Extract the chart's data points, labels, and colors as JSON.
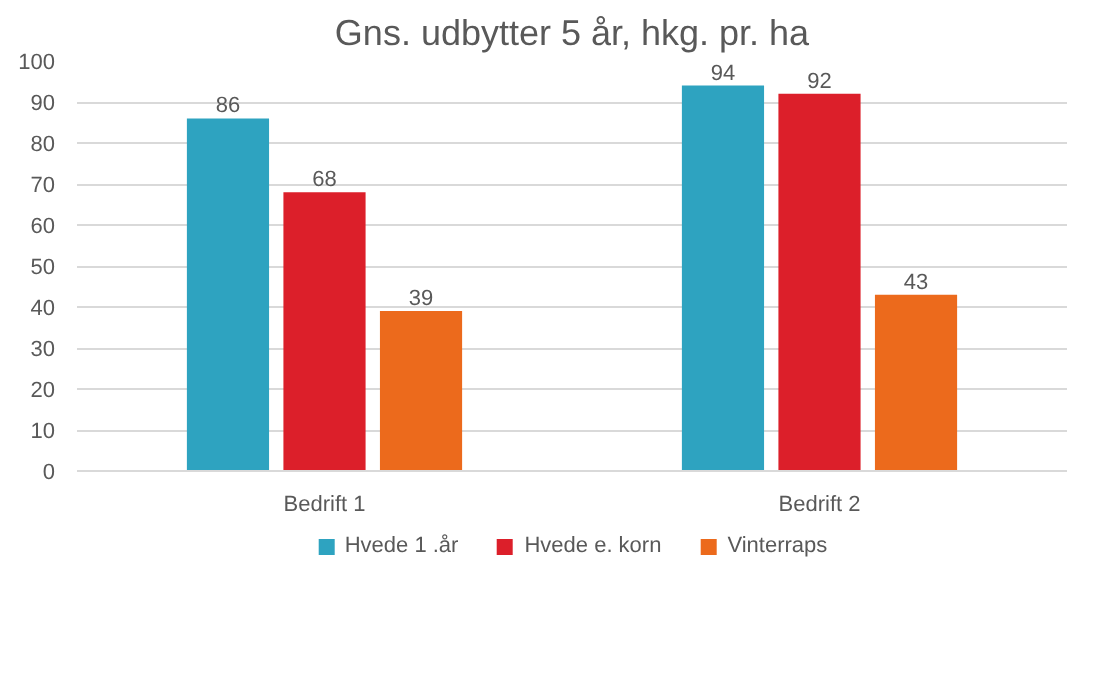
{
  "chart_data": {
    "type": "bar",
    "title": "Gns. udbytter 5 år, hkg. pr. ha",
    "categories": [
      "Bedrift 1",
      "Bedrift 2"
    ],
    "series": [
      {
        "name": "Hvede 1 .år",
        "color": "#2ea3c0",
        "values": [
          86,
          94
        ]
      },
      {
        "name": "Hvede e. korn",
        "color": "#dc1f2a",
        "values": [
          68,
          92
        ]
      },
      {
        "name": "Vinterraps",
        "color": "#ec6a1c",
        "values": [
          39,
          43
        ]
      }
    ],
    "ylim": [
      0,
      100
    ],
    "yticks": [
      0,
      10,
      20,
      30,
      40,
      50,
      60,
      70,
      80,
      90,
      100
    ],
    "grid": "y",
    "legend": "bottom",
    "data_labels": true
  }
}
